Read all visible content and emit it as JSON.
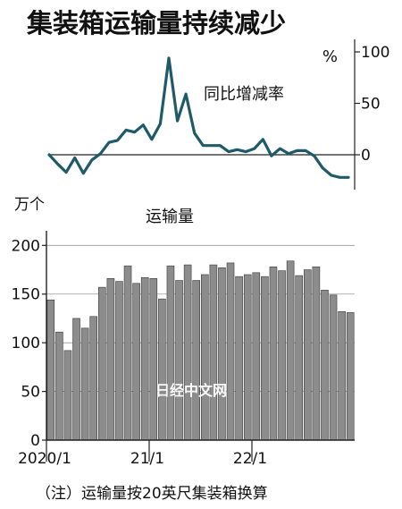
{
  "title": "集装箱运输量持续减少",
  "note": "（注）运输量按20英尺集装箱换算",
  "watermark": "日经中文网",
  "colors": {
    "line": "#1f5a68",
    "bar": "#8c8c8c",
    "bar_edge": "#3a3a3a",
    "axis": "#222222"
  },
  "chart_data": [
    {
      "type": "line",
      "title": "同比增减率",
      "unit": "%",
      "yticks": [
        0,
        50,
        100
      ],
      "ylim": [
        -35,
        105
      ],
      "values": [
        0,
        -9,
        -17,
        -3,
        -18,
        -5,
        1,
        12,
        14,
        24,
        22,
        29,
        15,
        30,
        94,
        33,
        59,
        21,
        9,
        9,
        9,
        3,
        5,
        3,
        6,
        15,
        -1,
        6,
        1,
        4,
        4,
        -1,
        -13,
        -20,
        -22,
        -22
      ]
    },
    {
      "type": "bar",
      "title": "运输量",
      "unit": "万个",
      "yticks": [
        0,
        50,
        100,
        150,
        200
      ],
      "ylim": [
        0,
        215
      ],
      "xticks": [
        {
          "label": "2020/1",
          "index": 0
        },
        {
          "label": "21/1",
          "index": 12
        },
        {
          "label": "22/1",
          "index": 24
        }
      ],
      "values": [
        144,
        111,
        92,
        125,
        115,
        127,
        157,
        166,
        163,
        179,
        161,
        167,
        166,
        145,
        179,
        164,
        180,
        164,
        170,
        180,
        177,
        182,
        168,
        170,
        172,
        168,
        178,
        174,
        184,
        169,
        175,
        178,
        154,
        149,
        132,
        131
      ]
    }
  ]
}
